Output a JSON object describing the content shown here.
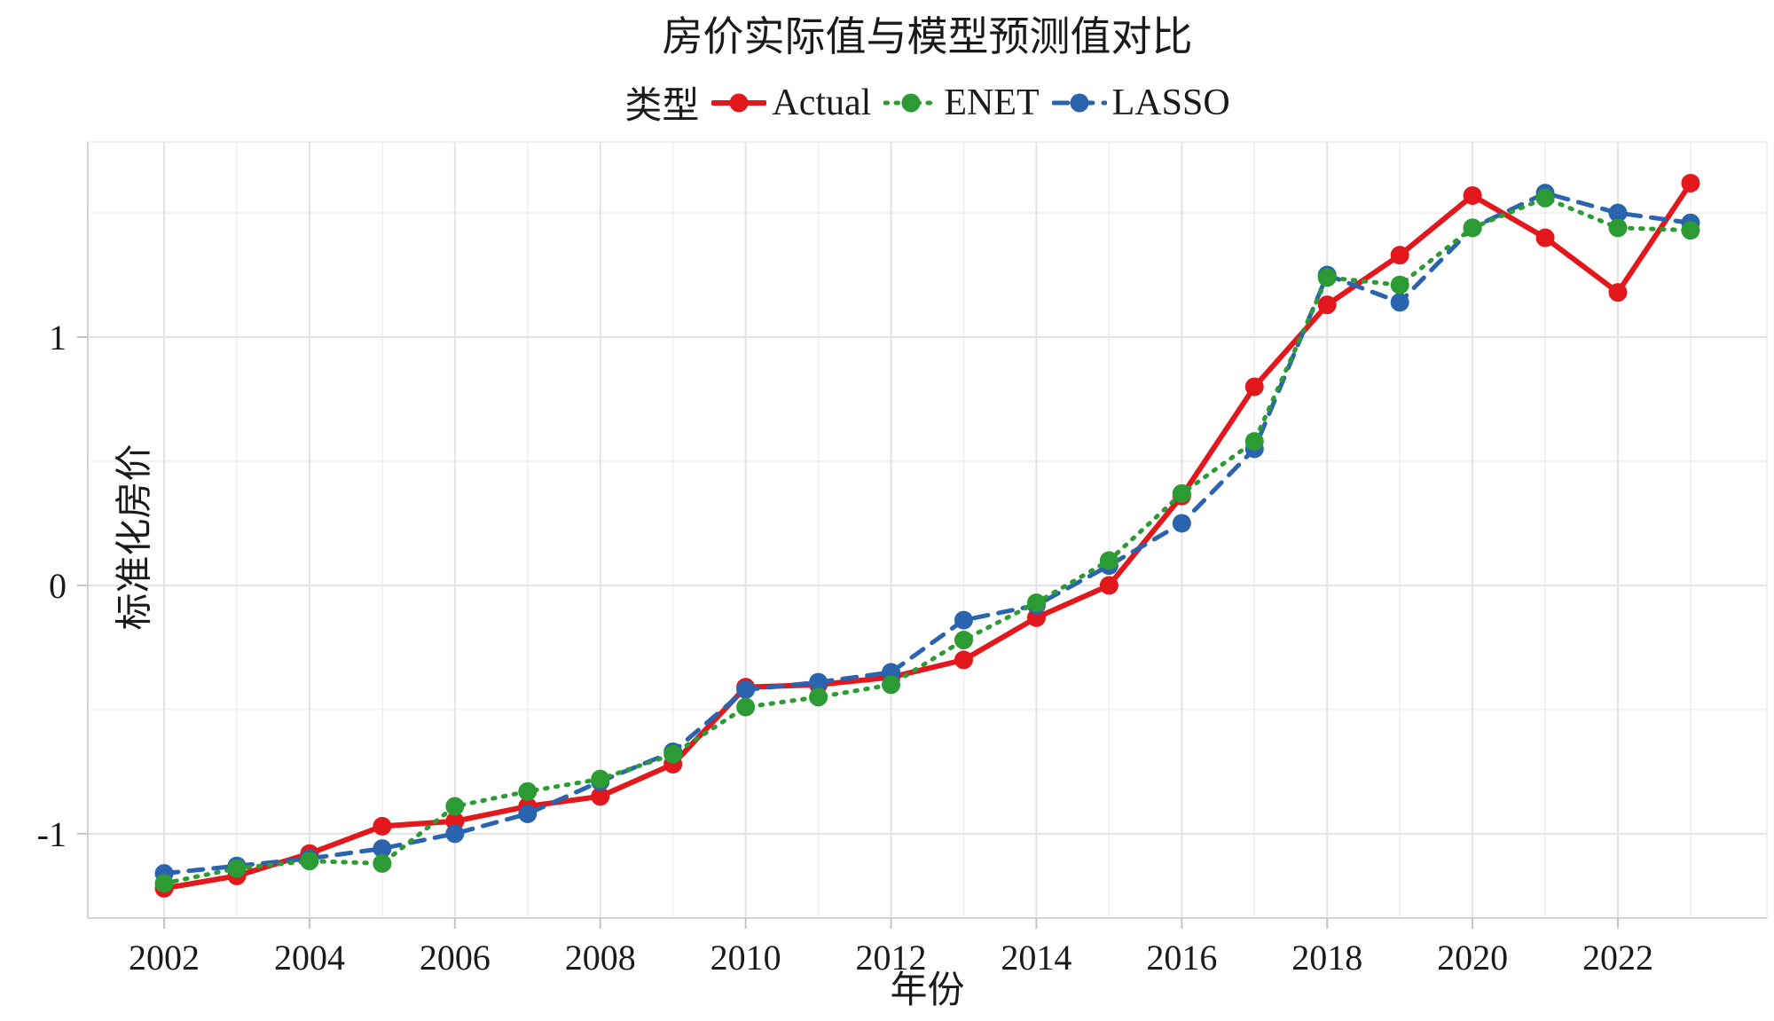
{
  "chart_data": {
    "type": "line",
    "title": "房价实际值与模型预测值对比",
    "legend_title": "类型",
    "xlabel": "年份",
    "ylabel": "标准化房价",
    "x": [
      2002,
      2003,
      2004,
      2005,
      2006,
      2007,
      2008,
      2009,
      2010,
      2011,
      2012,
      2013,
      2014,
      2015,
      2016,
      2017,
      2018,
      2019,
      2020,
      2021,
      2022,
      2023
    ],
    "xticks": [
      2002,
      2004,
      2006,
      2008,
      2010,
      2012,
      2014,
      2016,
      2018,
      2020,
      2022
    ],
    "yticks": [
      -1,
      0,
      1
    ],
    "minor_yticks": [
      -0.5,
      0.5,
      1.5
    ],
    "xlim": [
      2000.95,
      2024.05
    ],
    "ylim": [
      -1.34,
      1.786
    ],
    "grid": true,
    "legend_position": "top",
    "series": [
      {
        "name": "Actual",
        "color": "#e2181c",
        "line_style": "solid",
        "values": [
          -1.22,
          -1.17,
          -1.08,
          -0.97,
          -0.95,
          -0.89,
          -0.85,
          -0.72,
          -0.41,
          -0.4,
          -0.37,
          -0.3,
          -0.13,
          0.0,
          0.36,
          0.8,
          1.13,
          1.33,
          1.57,
          1.4,
          1.18,
          1.62
        ]
      },
      {
        "name": "ENET",
        "color": "#2d9b33",
        "line_style": "dotted",
        "values": [
          -1.2,
          -1.14,
          -1.11,
          -1.12,
          -0.89,
          -0.83,
          -0.78,
          -0.68,
          -0.49,
          -0.45,
          -0.4,
          -0.22,
          -0.07,
          0.1,
          0.37,
          0.58,
          1.24,
          1.21,
          1.44,
          1.56,
          1.44,
          1.43
        ]
      },
      {
        "name": "LASSO",
        "color": "#2a63ae",
        "line_style": "dashed",
        "values": [
          -1.16,
          -1.13,
          -1.1,
          -1.06,
          -1.0,
          -0.92,
          -0.79,
          -0.67,
          -0.42,
          -0.39,
          -0.35,
          -0.14,
          -0.08,
          0.08,
          0.25,
          0.55,
          1.25,
          1.14,
          1.44,
          1.58,
          1.5,
          1.46
        ]
      }
    ],
    "draw_order": [
      0,
      2,
      1
    ],
    "colors": {
      "grid_major": "#e3e3e3",
      "grid_minor": "#f0f0f0",
      "axis": "#d4d4d4",
      "tick": "#c4c4c4",
      "text": "#1a1a1a"
    }
  }
}
